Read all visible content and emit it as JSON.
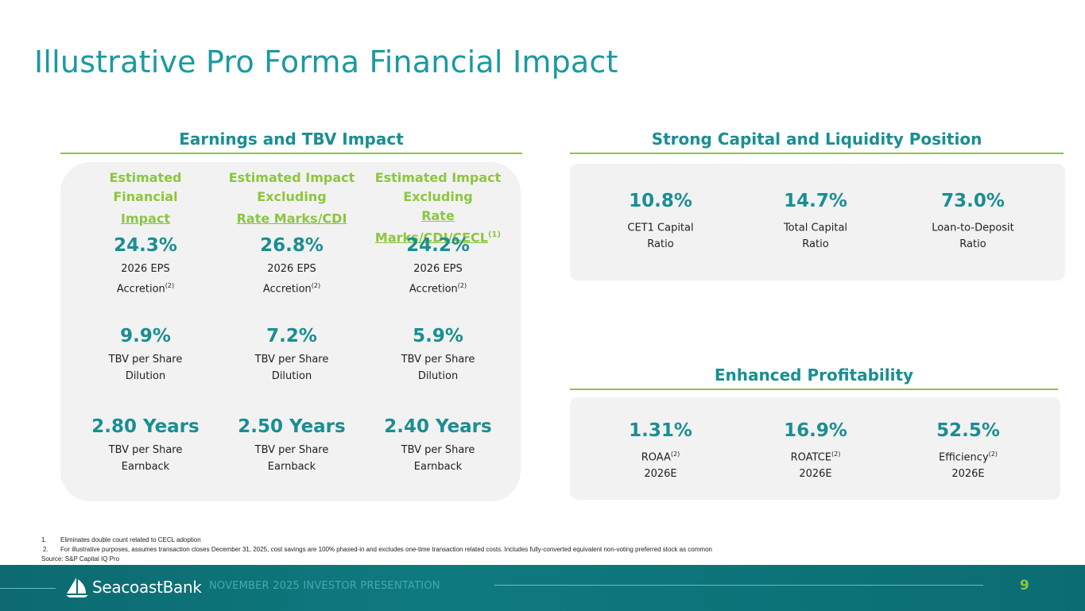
{
  "title": "Illustrative Pro Forma Financial Impact",
  "left_section": {
    "heading": "Earnings and TBV Impact",
    "columns": [
      {
        "head_lines": [
          "Estimated",
          "Financial"
        ],
        "head_underlined": "Impact",
        "head_sup": "",
        "eps_value": "24.3%",
        "eps_label_1": "2026 EPS",
        "eps_label_2": "Accretion",
        "eps_sup": "(2)",
        "tbv_value": "9.9%",
        "tbv_label_1": "TBV per Share",
        "tbv_label_2": "Dilution",
        "earn_value": "2.80 Years",
        "earn_label_1": "TBV per Share",
        "earn_label_2": "Earnback"
      },
      {
        "head_lines": [
          "Estimated Impact",
          "Excluding"
        ],
        "head_underlined": "Rate Marks/CDI",
        "head_sup": "",
        "eps_value": "26.8%",
        "eps_label_1": "2026 EPS",
        "eps_label_2": "Accretion",
        "eps_sup": "(2)",
        "tbv_value": "7.2%",
        "tbv_label_1": "TBV per Share",
        "tbv_label_2": "Dilution",
        "earn_value": "2.50 Years",
        "earn_label_1": "TBV per Share",
        "earn_label_2": "Earnback"
      },
      {
        "head_lines": [
          "Estimated Impact",
          "Excluding"
        ],
        "head_underlined": "Rate Marks/CDI/CECL",
        "head_sup": "(1)",
        "eps_value": "24.2%",
        "eps_label_1": "2026 EPS",
        "eps_label_2": "Accretion",
        "eps_sup": "(2)",
        "tbv_value": "5.9%",
        "tbv_label_1": "TBV per Share",
        "tbv_label_2": "Dilution",
        "earn_value": "2.40 Years",
        "earn_label_1": "TBV per Share",
        "earn_label_2": "Earnback"
      }
    ]
  },
  "capital_section": {
    "heading": "Strong Capital and Liquidity Position",
    "metrics": [
      {
        "value": "10.8%",
        "label_1": "CET1 Capital",
        "label_sup": "",
        "label_2": "Ratio"
      },
      {
        "value": "14.7%",
        "label_1": "Total Capital",
        "label_sup": "",
        "label_2": "Ratio"
      },
      {
        "value": "73.0%",
        "label_1": "Loan-to-Deposit",
        "label_sup": "",
        "label_2": "Ratio"
      }
    ]
  },
  "profitability_section": {
    "heading": "Enhanced Profitability",
    "metrics": [
      {
        "value": "1.31%",
        "label_1": "ROAA",
        "label_sup": "(2)",
        "label_2": "2026E"
      },
      {
        "value": "16.9%",
        "label_1": "ROATCE",
        "label_sup": "(2)",
        "label_2": "2026E"
      },
      {
        "value": "52.5%",
        "label_1": "Efficiency",
        "label_sup": "(2)",
        "label_2": "2026E"
      }
    ]
  },
  "footnotes": {
    "items": [
      {
        "num": "1.",
        "text": "Eliminates double count related to CECL adoption"
      },
      {
        "num": "2.",
        "text": "For illustrative purposes, assumes transaction closes December 31, 2025, cost savings are 100% phased-in and excludes one-time transaction related costs. Includes fully-converted equivalent non-voting preferred stock as common"
      }
    ],
    "source": "Source: S&P Capital IQ Pro"
  },
  "footer": {
    "brand": "SeacoastBank",
    "label": "NOVEMBER 2025 INVESTOR PRESENTATION",
    "page_number": "9"
  },
  "colors": {
    "title": "#1a9aa0",
    "accent_green": "#8cc63f",
    "value_teal": "#1a8e92",
    "panel_bg": "#f2f2f2",
    "footer_bg": "#0e7a80"
  }
}
